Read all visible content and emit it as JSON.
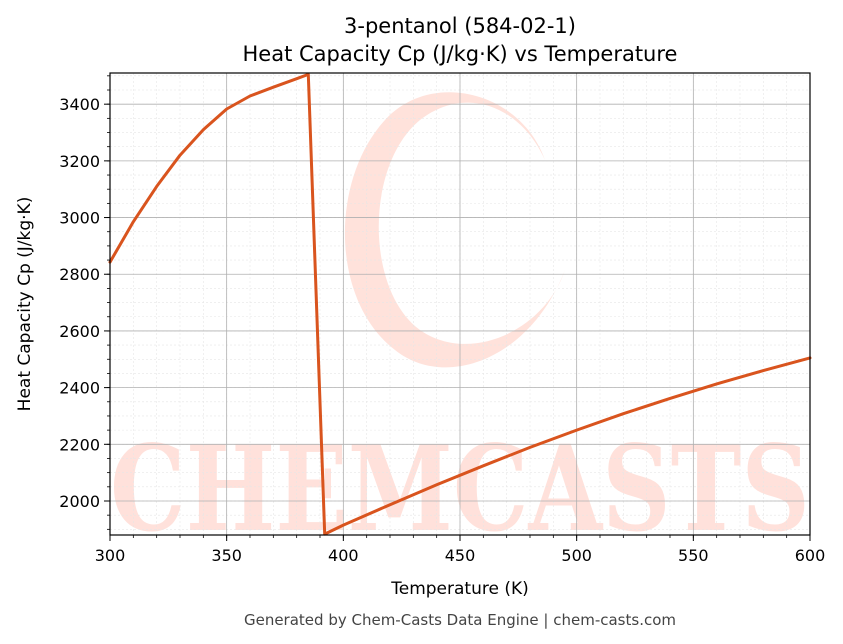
{
  "chart_data": {
    "type": "line",
    "title_line1": "3-pentanol (584-02-1)",
    "title_line2": "Heat Capacity Cp (J/kg·K) vs Temperature",
    "xlabel": "Temperature (K)",
    "ylabel": "Heat Capacity Cp (J/kg·K)",
    "xlim": [
      300,
      600
    ],
    "ylim": [
      1880,
      3510
    ],
    "xticks": [
      300,
      350,
      400,
      450,
      500,
      550,
      600
    ],
    "yticks": [
      2000,
      2200,
      2400,
      2600,
      2800,
      3000,
      3200,
      3400
    ],
    "grid": true,
    "series": [
      {
        "color": "#d9541e",
        "x": [
          300,
          310,
          320,
          330,
          340,
          350,
          360,
          370,
          380,
          385,
          392,
          400,
          420,
          440,
          460,
          480,
          500,
          520,
          540,
          560,
          580,
          600
        ],
        "y": [
          2843,
          2985,
          3110,
          3220,
          3310,
          3383,
          3429,
          3460,
          3490,
          3505,
          1883,
          1915,
          1987,
          2057,
          2124,
          2189,
          2250,
          2308,
          2362,
          2413,
          2460,
          2505
        ]
      }
    ]
  },
  "watermark": {
    "text": "CHEMCASTS",
    "color": "#ffd8cf"
  },
  "footer": "Generated by Chem-Casts Data Engine | chem-casts.com"
}
